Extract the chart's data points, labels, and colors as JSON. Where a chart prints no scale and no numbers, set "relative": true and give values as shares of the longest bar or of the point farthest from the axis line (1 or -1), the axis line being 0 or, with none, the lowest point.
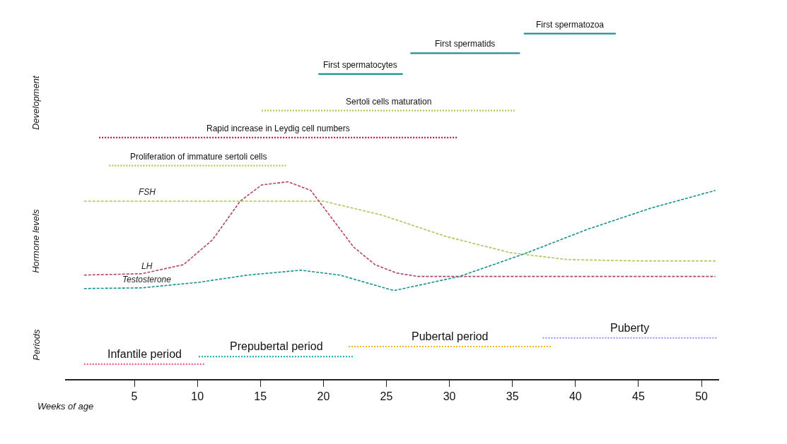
{
  "chart_data": {
    "type": "line",
    "relative": true,
    "xlabel": "Weeks of age",
    "legend": false,
    "marker": "none",
    "xlim": [
      -0.5,
      51.4
    ],
    "xticks": [
      5,
      10,
      15,
      20,
      25,
      30,
      35,
      40,
      45,
      50
    ],
    "annotations": [
      "Development",
      "Hormone levels",
      "Periods"
    ],
    "series": [
      {
        "name": "First spermatozoa",
        "color": "#1f8f95",
        "line_style": "solid",
        "x": [
          35.9,
          43.2
        ],
        "values": [
          1,
          1
        ]
      },
      {
        "name": "First spermatids",
        "color": "#1f8f95",
        "line_style": "solid",
        "x": [
          26.9,
          35.6
        ],
        "values": [
          0.943,
          0.943
        ]
      },
      {
        "name": "First spermatocytes",
        "color": "#1f8f95",
        "line_style": "solid",
        "x": [
          19.6,
          26.3
        ],
        "values": [
          0.883,
          0.883
        ]
      },
      {
        "name": "Sertoli cells maturation",
        "color": "#a6cf4f",
        "line_style": "dotted",
        "x": [
          15.1,
          35.2
        ],
        "values": [
          0.777,
          0.777
        ]
      },
      {
        "name": "Rapid increase in Leydig cell numbers",
        "color": "#c8194a",
        "line_style": "dotted",
        "x": [
          2.2,
          30.6
        ],
        "values": [
          0.699,
          0.699
        ]
      },
      {
        "name": "Proliferation of immature sertoli cells",
        "color": "#a6cf4f",
        "line_style": "dotted",
        "x": [
          3.0,
          17.1
        ],
        "values": [
          0.618,
          0.618
        ]
      },
      {
        "name": "FSH",
        "color": "#a9c95a",
        "line_style": "dashed",
        "x": [
          1,
          10,
          20,
          24.7,
          29.7,
          34.8,
          39.3,
          45,
          51.2
        ],
        "values": [
          0.515,
          0.515,
          0.515,
          0.474,
          0.413,
          0.366,
          0.346,
          0.342,
          0.342
        ]
      },
      {
        "name": "LH",
        "color": "#b2446a",
        "line_style": "dashed",
        "x": [
          1,
          5.6,
          8.9,
          11.2,
          13.4,
          15.1,
          17.2,
          19.0,
          20.7,
          22.4,
          24.1,
          25.8,
          27.5,
          51.1
        ],
        "values": [
          0.301,
          0.305,
          0.331,
          0.403,
          0.515,
          0.562,
          0.571,
          0.546,
          0.464,
          0.382,
          0.331,
          0.307,
          0.297,
          0.297
        ]
      },
      {
        "name": "Testosterone",
        "color": "#14908f",
        "line_style": "dashed",
        "x": [
          1,
          5.6,
          10.1,
          14.0,
          18.2,
          21.3,
          25.6,
          30.8,
          35.9,
          41.0,
          46.0,
          51.1
        ],
        "values": [
          0.262,
          0.264,
          0.28,
          0.301,
          0.315,
          0.301,
          0.256,
          0.297,
          0.362,
          0.434,
          0.495,
          0.546
        ]
      },
      {
        "name": "Puberty",
        "color": "#9b8de6",
        "line_style": "dotted",
        "x": [
          37.4,
          51.2
        ],
        "values": [
          0.119,
          0.119
        ]
      },
      {
        "name": "Pubertal period",
        "color": "#e9b82a",
        "line_style": "dotted",
        "x": [
          22.0,
          38.1
        ],
        "values": [
          0.094,
          0.094
        ]
      },
      {
        "name": "Prepubertal period",
        "color": "#22b5b0",
        "line_style": "dotted",
        "x": [
          10.1,
          22.4
        ],
        "values": [
          0.065,
          0.065
        ]
      },
      {
        "name": "Infantile period",
        "color": "#e8588a",
        "line_style": "dotted",
        "x": [
          1.0,
          10.6
        ],
        "values": [
          0.043,
          0.043
        ]
      }
    ]
  }
}
